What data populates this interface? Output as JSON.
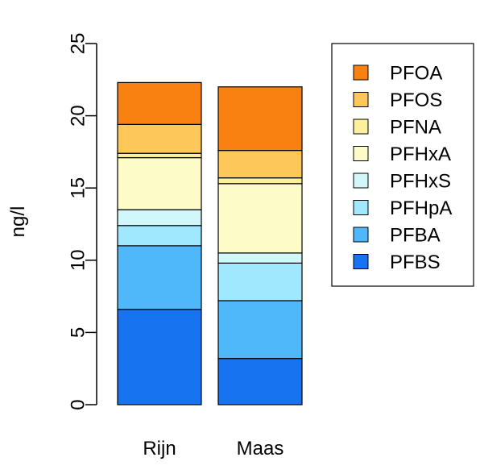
{
  "chart_data": {
    "type": "bar",
    "stacked": true,
    "title": "",
    "xlabel": "",
    "ylabel": "ng/l",
    "ylim": [
      0,
      25
    ],
    "yticks": [
      "0",
      "5",
      "10",
      "15",
      "20",
      "25"
    ],
    "categories": [
      "Rijn",
      "Maas"
    ],
    "grid": false,
    "legend_position": "top-right",
    "series": [
      {
        "name": "PFBS",
        "color": "#1873f0",
        "values": [
          6.6,
          3.2
        ]
      },
      {
        "name": "PFBA",
        "color": "#4eb8fb",
        "values": [
          4.4,
          4.0
        ]
      },
      {
        "name": "PFHpA",
        "color": "#9fe8fd",
        "values": [
          1.4,
          2.6
        ]
      },
      {
        "name": "PFHxS",
        "color": "#d2f7fb",
        "values": [
          1.1,
          0.7
        ]
      },
      {
        "name": "PFHxA",
        "color": "#fdfbc8",
        "values": [
          3.6,
          4.8
        ]
      },
      {
        "name": "PFNA",
        "color": "#fdf09d",
        "values": [
          0.3,
          0.4
        ]
      },
      {
        "name": "PFOS",
        "color": "#fdc75a",
        "values": [
          2.0,
          1.9
        ]
      },
      {
        "name": "PFOA",
        "color": "#f98111",
        "values": [
          2.9,
          4.4
        ]
      }
    ]
  }
}
